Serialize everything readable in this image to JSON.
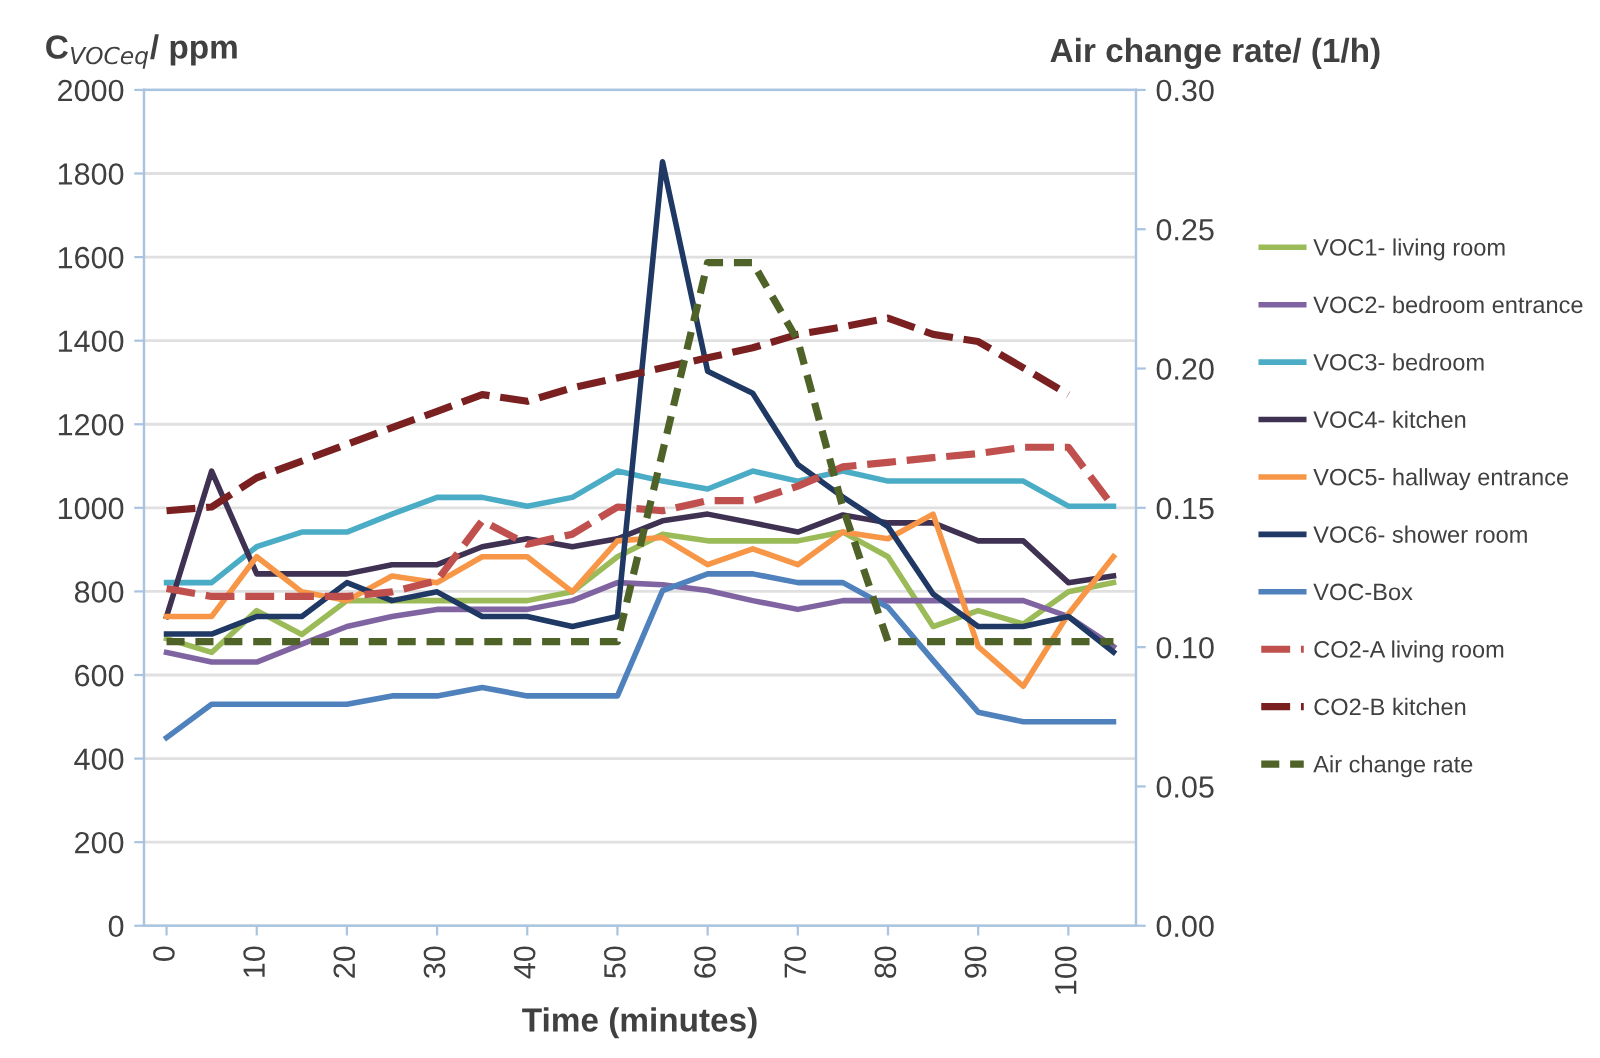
{
  "chart_data": {
    "type": "line",
    "xlabel": "Time (minutes)",
    "ylabel": "C$_{VOCeq}$/ ppm",
    "y2label": "Air change rate/ (1/h)",
    "x": [
      0,
      5,
      10,
      15,
      20,
      25,
      30,
      35,
      40,
      45,
      50,
      55,
      60,
      65,
      70,
      75,
      80,
      85,
      90,
      95,
      100,
      105
    ],
    "xlim": [
      -2.5,
      107.5
    ],
    "xticks": [
      0,
      10,
      20,
      30,
      40,
      50,
      60,
      70,
      80,
      90,
      100
    ],
    "ylim": [
      0,
      2000
    ],
    "yticks": [
      0,
      200,
      400,
      600,
      800,
      1000,
      1200,
      1400,
      1600,
      1800,
      2000
    ],
    "y2lim": [
      0,
      0.3
    ],
    "y2ticks": [
      {
        "value": 0,
        "label": "0.00"
      },
      {
        "value": 0.05,
        "label": "0.05"
      },
      {
        "value": 0.1,
        "label": "0.10"
      },
      {
        "value": 0.15,
        "label": "0.15"
      },
      {
        "value": 0.2,
        "label": "0.20"
      },
      {
        "value": 0.25,
        "label": "0.25"
      },
      {
        "value": 0.3,
        "label": "0.30"
      }
    ],
    "grid": "y",
    "legend": "right",
    "series": [
      {
        "name": "VOC1- living room",
        "color": "#9bbb59",
        "line_style": "solid",
        "values": [
          687,
          654,
          754,
          697,
          778,
          778,
          778,
          778,
          778,
          799,
          883,
          937,
          921,
          921,
          921,
          942,
          883,
          716,
          754,
          722,
          799,
          821
        ]
      },
      {
        "name": "VOC2- bedroom entrance",
        "color": "#8064a2",
        "line_style": "solid",
        "values": [
          654,
          631,
          631,
          674,
          716,
          740,
          757,
          757,
          757,
          778,
          821,
          816,
          802,
          778,
          757,
          778,
          778,
          778,
          778,
          778,
          740,
          668
        ]
      },
      {
        "name": "VOC3- bedroom",
        "color": "#4bacc6",
        "line_style": "solid",
        "values": [
          821,
          821,
          907,
          942,
          942,
          985,
          1025,
          1025,
          1004,
          1025,
          1088,
          1064,
          1045,
          1088,
          1064,
          1088,
          1064,
          1064,
          1064,
          1064,
          1004,
          1004
        ]
      },
      {
        "name": "VOC4- kitchen",
        "color": "#3f3151",
        "line_style": "solid",
        "values": [
          740,
          1088,
          842,
          842,
          842,
          864,
          864,
          907,
          926,
          907,
          926,
          969,
          985,
          964,
          942,
          983,
          964,
          964,
          921,
          921,
          821,
          837
        ]
      },
      {
        "name": "VOC5- hallway entrance",
        "color": "#f79646",
        "line_style": "solid",
        "values": [
          740,
          740,
          883,
          799,
          778,
          837,
          821,
          883,
          883,
          799,
          921,
          929,
          864,
          902,
          864,
          942,
          926,
          985,
          668,
          573,
          746,
          883
        ]
      },
      {
        "name": "VOC6- shower room",
        "color": "#1f3864",
        "line_style": "solid",
        "values": [
          698,
          698,
          740,
          740,
          821,
          778,
          799,
          740,
          740,
          716,
          740,
          1828,
          1327,
          1274,
          1104,
          1026,
          955,
          794,
          716,
          716,
          740,
          655
        ]
      },
      {
        "name": "VOC-Box",
        "color": "#4f81bd",
        "line_style": "solid",
        "values": [
          450,
          530,
          530,
          530,
          530,
          550,
          550,
          570,
          550,
          550,
          550,
          802,
          842,
          842,
          821,
          821,
          762,
          635,
          511,
          488,
          488,
          488
        ]
      },
      {
        "name": "CO2-A living room",
        "color": "#c0504d",
        "line_style": "dashed",
        "values": [
          807,
          788,
          788,
          788,
          788,
          799,
          826,
          969,
          913,
          937,
          1002,
          993,
          1017,
          1017,
          1052,
          1098,
          1109,
          1120,
          1130,
          1145,
          1145,
          1002
        ]
      },
      {
        "name": "CO2-B kitchen",
        "color": "#7b2021",
        "line_style": "dashed",
        "values": [
          993,
          1002,
          1072,
          1112,
          1152,
          1192,
          1231,
          1271,
          1255,
          1287,
          1311,
          1335,
          1359,
          1383,
          1415,
          1433,
          1454,
          1415,
          1398,
          1335,
          1271,
          null
        ]
      },
      {
        "name": "Air change rate",
        "color": "#4f6228",
        "line_style": "dotted",
        "axis": "y2",
        "values": [
          0.102,
          0.102,
          0.102,
          0.102,
          0.102,
          0.102,
          0.102,
          0.102,
          0.102,
          0.102,
          0.102,
          0.17,
          0.238,
          0.238,
          0.21,
          0.15,
          0.102,
          0.102,
          0.102,
          0.102,
          0.102,
          0.102
        ]
      }
    ]
  }
}
